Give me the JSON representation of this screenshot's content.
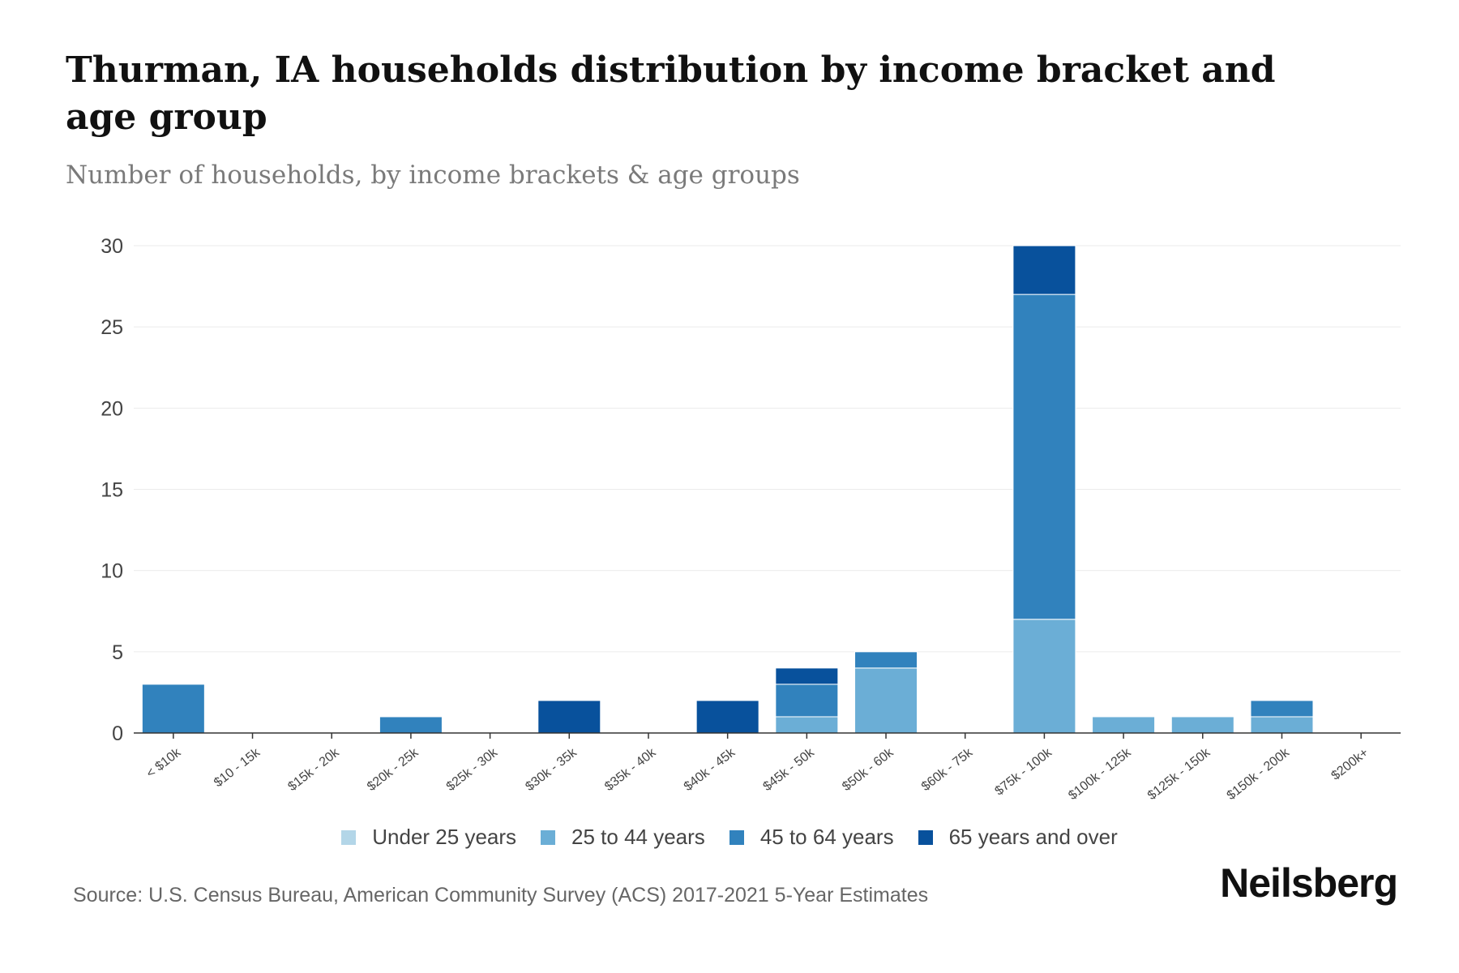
{
  "chart_data": {
    "type": "bar",
    "stacked": true,
    "title": "Thurman, IA households distribution by income bracket and age group",
    "subtitle": "Number of households, by income brackets & age groups",
    "xlabel": "",
    "ylabel": "",
    "ylim": [
      0,
      30
    ],
    "yticks": [
      0,
      5,
      10,
      15,
      20,
      25,
      30
    ],
    "grid": true,
    "legend_position": "bottom",
    "categories": [
      "< $10k",
      "$10 - 15k",
      "$15k - 20k",
      "$20k - 25k",
      "$25k - 30k",
      "$30k - 35k",
      "$35k - 40k",
      "$40k - 45k",
      "$45k - 50k",
      "$50k - 60k",
      "$60k - 75k",
      "$75k - 100k",
      "$100k - 125k",
      "$125k - 150k",
      "$150k - 200k",
      "$200k+"
    ],
    "series": [
      {
        "name": "Under 25 years",
        "color": "#b3d6e8",
        "values": [
          0,
          0,
          0,
          0,
          0,
          0,
          0,
          0,
          0,
          0,
          0,
          0,
          0,
          0,
          0,
          0
        ]
      },
      {
        "name": "25 to 44 years",
        "color": "#6baed6",
        "values": [
          0,
          0,
          0,
          0,
          0,
          0,
          0,
          0,
          1,
          4,
          0,
          7,
          1,
          1,
          1,
          0
        ]
      },
      {
        "name": "45 to 64 years",
        "color": "#3182bd",
        "values": [
          3,
          0,
          0,
          1,
          0,
          0,
          0,
          0,
          2,
          1,
          0,
          20,
          0,
          0,
          1,
          0
        ]
      },
      {
        "name": "65 years and over",
        "color": "#08519c",
        "values": [
          0,
          0,
          0,
          0,
          0,
          2,
          0,
          2,
          1,
          0,
          0,
          3,
          0,
          0,
          0,
          0
        ]
      }
    ]
  },
  "source": "Source: U.S. Census Bureau, American Community Survey (ACS) 2017-2021 5-Year Estimates",
  "brand": "Neilsberg"
}
